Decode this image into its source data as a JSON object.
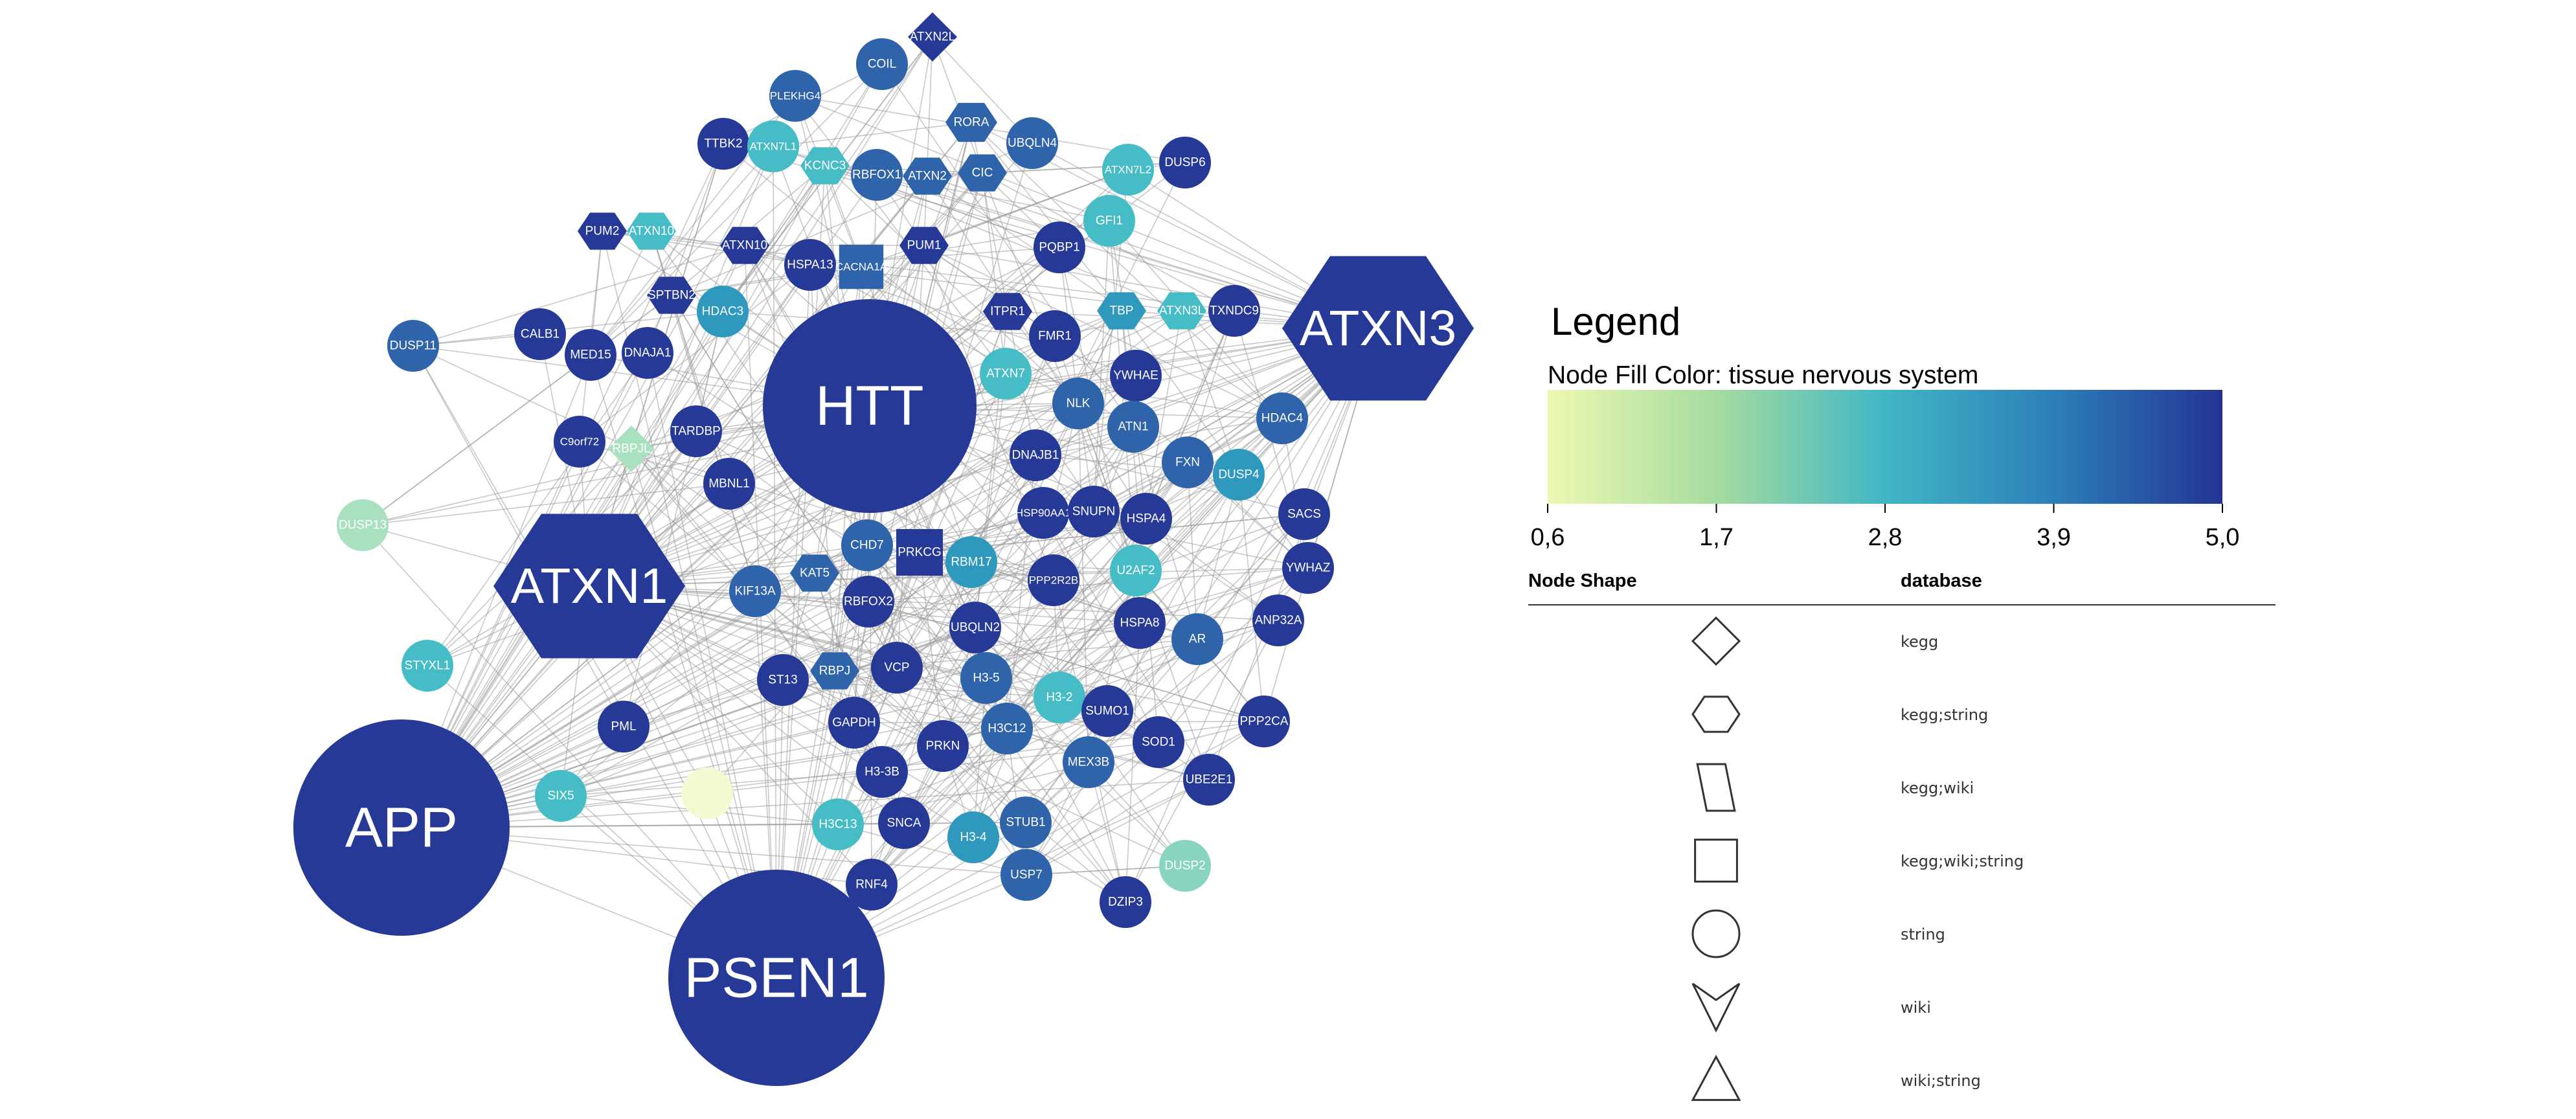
{
  "legend": {
    "title": "Legend",
    "fill_label": "Node Fill Color:  tissue  nervous  system",
    "ticks": [
      "0,6",
      "1,7",
      "2,8",
      "3,9",
      "5,0"
    ],
    "gradient_stops": [
      "#edf8b1",
      "#a6dba0",
      "#41b6c4",
      "#2c7fb8",
      "#253494"
    ],
    "shape_header": "Node Shape",
    "db_header": "database",
    "shapes": [
      {
        "shape": "diamond",
        "db": "kegg"
      },
      {
        "shape": "hexagon",
        "db": "kegg;string"
      },
      {
        "shape": "parallelogram",
        "db": "kegg;wiki"
      },
      {
        "shape": "square",
        "db": "kegg;wiki;string"
      },
      {
        "shape": "circle",
        "db": "string"
      },
      {
        "shape": "vee",
        "db": "wiki"
      },
      {
        "shape": "triangle",
        "db": "wiki;string"
      }
    ]
  },
  "colors": {
    "dark": "#263996",
    "mid": "#2f63aa",
    "teal": "#2f98bd",
    "cyan": "#46bdc6",
    "mint": "#88d4c0",
    "pale": "#a9e0bf",
    "yellow": "#f2fad2",
    "edge": "#9a9a9a"
  },
  "nodes": [
    {
      "label": "HTT",
      "value": 5.0,
      "shape": "circle"
    },
    {
      "label": "ATXN3",
      "value": 5.0,
      "shape": "hexagon"
    },
    {
      "label": "ATXN1",
      "value": 5.0,
      "shape": "hexagon"
    },
    {
      "label": "APP",
      "value": 5.0,
      "shape": "circle"
    },
    {
      "label": "PSEN1",
      "value": 5.0,
      "shape": "circle"
    },
    {
      "label": "ATXN2L",
      "value": 5.0,
      "shape": "diamond"
    },
    {
      "label": "COIL",
      "value": 4.6,
      "shape": "circle"
    },
    {
      "label": "PLEKHG4",
      "value": 4.4,
      "shape": "circle"
    },
    {
      "label": "RORA",
      "value": 4.2,
      "shape": "hexagon"
    },
    {
      "label": "TTBK2",
      "value": 4.8,
      "shape": "circle"
    },
    {
      "label": "ATXN7L1",
      "value": 2.4,
      "shape": "circle"
    },
    {
      "label": "KCNC3",
      "value": 2.8,
      "shape": "hexagon"
    },
    {
      "label": "RBFOX1",
      "value": 4.6,
      "shape": "circle"
    },
    {
      "label": "ATXN2",
      "value": 4.4,
      "shape": "hexagon"
    },
    {
      "label": "CIC",
      "value": 4.4,
      "shape": "hexagon"
    },
    {
      "label": "UBQLN4",
      "value": 4.6,
      "shape": "circle"
    },
    {
      "label": "ATXN7L2",
      "value": 2.4,
      "shape": "circle"
    },
    {
      "label": "DUSP6",
      "value": 5.0,
      "shape": "circle"
    },
    {
      "label": "GFI1",
      "value": 2.3,
      "shape": "circle"
    },
    {
      "label": "PUM2",
      "value": 5.0,
      "shape": "hexagon"
    },
    {
      "label": "ATXN10",
      "value": 2.4,
      "shape": "hexagon"
    },
    {
      "label": "ATXN10",
      "value": 5.0,
      "shape": "hexagon"
    },
    {
      "label": "HSPA13",
      "value": 4.8,
      "shape": "circle"
    },
    {
      "label": "CACNA1A",
      "value": 4.6,
      "shape": "square"
    },
    {
      "label": "PUM1",
      "value": 5.0,
      "shape": "hexagon"
    },
    {
      "label": "PQBP1",
      "value": 4.8,
      "shape": "circle"
    },
    {
      "label": "SPTBN2",
      "value": 5.0,
      "shape": "hexagon"
    },
    {
      "label": "HDAC3",
      "value": 3.4,
      "shape": "circle"
    },
    {
      "label": "ITPR1",
      "value": 4.8,
      "shape": "hexagon"
    },
    {
      "label": "TBP",
      "value": 3.6,
      "shape": "hexagon"
    },
    {
      "label": "ATXN3L",
      "value": 2.6,
      "shape": "hexagon"
    },
    {
      "label": "TXNDC9",
      "value": 4.8,
      "shape": "circle"
    },
    {
      "label": "DUSP11",
      "value": 4.6,
      "shape": "circle"
    },
    {
      "label": "CALB1",
      "value": 4.8,
      "shape": "circle"
    },
    {
      "label": "MED15",
      "value": 4.8,
      "shape": "circle"
    },
    {
      "label": "DNAJA1",
      "value": 5.0,
      "shape": "circle"
    },
    {
      "label": "FMR1",
      "value": 4.8,
      "shape": "circle"
    },
    {
      "label": "ATXN7",
      "value": 2.6,
      "shape": "circle"
    },
    {
      "label": "YWHAE",
      "value": 5.0,
      "shape": "circle"
    },
    {
      "label": "NLK",
      "value": 4.6,
      "shape": "circle"
    },
    {
      "label": "HDAC4",
      "value": 4.4,
      "shape": "circle"
    },
    {
      "label": "TARDBP",
      "value": 5.0,
      "shape": "circle"
    },
    {
      "label": "C9orf72",
      "value": 5.0,
      "shape": "circle"
    },
    {
      "label": "RBPJL",
      "value": 1.8,
      "shape": "diamond"
    },
    {
      "label": "ATN1",
      "value": 4.6,
      "shape": "circle"
    },
    {
      "label": "FXN",
      "value": 4.6,
      "shape": "circle"
    },
    {
      "label": "DUSP4",
      "value": 3.8,
      "shape": "circle"
    },
    {
      "label": "DNAJB1",
      "value": 5.0,
      "shape": "circle"
    },
    {
      "label": "MBNL1",
      "value": 5.0,
      "shape": "circle"
    },
    {
      "label": "DUSP13",
      "value": 1.8,
      "shape": "circle"
    },
    {
      "label": "HSP90AA1",
      "value": 4.8,
      "shape": "circle"
    },
    {
      "label": "SNUPN",
      "value": 4.8,
      "shape": "circle"
    },
    {
      "label": "HSPA4",
      "value": 5.0,
      "shape": "circle"
    },
    {
      "label": "SACS",
      "value": 5.0,
      "shape": "circle"
    },
    {
      "label": "CHD7",
      "value": 4.6,
      "shape": "circle"
    },
    {
      "label": "PRKCG",
      "value": 4.8,
      "shape": "square"
    },
    {
      "label": "RBM17",
      "value": 3.2,
      "shape": "circle"
    },
    {
      "label": "KAT5",
      "value": 4.2,
      "shape": "hexagon"
    },
    {
      "label": "PPP2R2B",
      "value": 4.8,
      "shape": "circle"
    },
    {
      "label": "U2AF2",
      "value": 3.0,
      "shape": "circle"
    },
    {
      "label": "YWHAZ",
      "value": 5.0,
      "shape": "circle"
    },
    {
      "label": "KIF13A",
      "value": 4.6,
      "shape": "circle"
    },
    {
      "label": "RBFOX2",
      "value": 4.8,
      "shape": "circle"
    },
    {
      "label": "UBQLN2",
      "value": 5.0,
      "shape": "circle"
    },
    {
      "label": "HSPA8",
      "value": 5.0,
      "shape": "circle"
    },
    {
      "label": "AR",
      "value": 4.6,
      "shape": "circle"
    },
    {
      "label": "ANP32A",
      "value": 4.8,
      "shape": "circle"
    },
    {
      "label": "STYXL1",
      "value": 3.0,
      "shape": "circle"
    },
    {
      "label": "RBPJ",
      "value": 4.4,
      "shape": "hexagon"
    },
    {
      "label": "VCP",
      "value": 5.0,
      "shape": "circle"
    },
    {
      "label": "ST13",
      "value": 5.0,
      "shape": "circle"
    },
    {
      "label": "H3-5",
      "value": 4.6,
      "shape": "circle"
    },
    {
      "label": "H3-2",
      "value": 2.8,
      "shape": "circle"
    },
    {
      "label": "SUMO1",
      "value": 5.0,
      "shape": "circle"
    },
    {
      "label": "PML",
      "value": 4.8,
      "shape": "circle"
    },
    {
      "label": "GAPDH",
      "value": 5.0,
      "shape": "circle"
    },
    {
      "label": "H3C12",
      "value": 4.4,
      "shape": "circle"
    },
    {
      "label": "PPP2CA",
      "value": 4.8,
      "shape": "circle"
    },
    {
      "label": "PRKN",
      "value": 5.0,
      "shape": "circle"
    },
    {
      "label": "SOD1",
      "value": 5.0,
      "shape": "circle"
    },
    {
      "label": "H3-3B",
      "value": 4.8,
      "shape": "circle"
    },
    {
      "label": "MEX3B",
      "value": 4.4,
      "shape": "circle"
    },
    {
      "label": "UBE2E1",
      "value": 4.8,
      "shape": "circle"
    },
    {
      "label": "SIX5",
      "value": 2.8,
      "shape": "circle"
    },
    {
      "label": "",
      "value": 0.6,
      "shape": "circle"
    },
    {
      "label": "H3C13",
      "value": 3.0,
      "shape": "circle"
    },
    {
      "label": "SNCA",
      "value": 5.0,
      "shape": "circle"
    },
    {
      "label": "H3-4",
      "value": 4.0,
      "shape": "circle"
    },
    {
      "label": "STUB1",
      "value": 4.6,
      "shape": "circle"
    },
    {
      "label": "DUSP2",
      "value": 2.0,
      "shape": "circle"
    },
    {
      "label": "USP7",
      "value": 4.4,
      "shape": "circle"
    },
    {
      "label": "RNF4",
      "value": 5.0,
      "shape": "circle"
    },
    {
      "label": "DZIP3",
      "value": 5.0,
      "shape": "circle"
    }
  ]
}
